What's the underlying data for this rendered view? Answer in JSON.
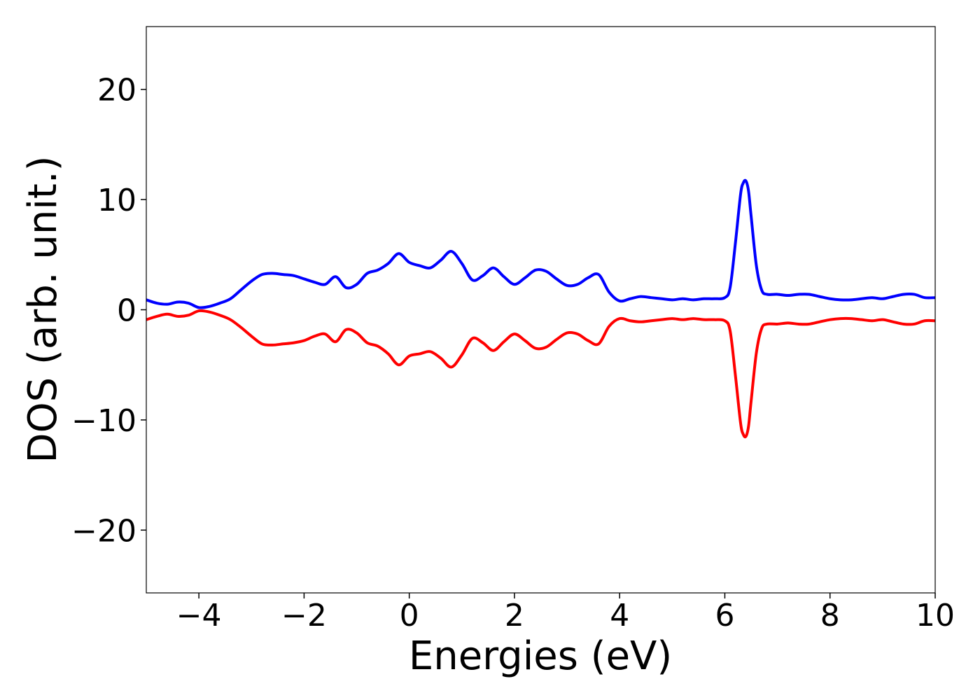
{
  "chart_data": {
    "type": "line",
    "title": "",
    "xlabel": "Energies (eV)",
    "ylabel": "DOS (arb. unit.)",
    "xlim": [
      -5,
      10
    ],
    "ylim": [
      -25.7,
      25.7
    ],
    "grid": false,
    "x_ticks": [
      -4,
      -2,
      0,
      2,
      4,
      6,
      8,
      10
    ],
    "x_tick_labels": [
      "−4",
      "−2",
      "0",
      "2",
      "4",
      "6",
      "8",
      "10"
    ],
    "y_ticks": [
      20,
      10,
      0,
      -10,
      -20
    ],
    "y_tick_labels": [
      "20",
      "10",
      "0",
      "−10",
      "−20"
    ],
    "series": [
      {
        "color": "#0000ff",
        "x": [
          -5.0,
          -4.8,
          -4.6,
          -4.4,
          -4.2,
          -4.0,
          -3.8,
          -3.6,
          -3.4,
          -3.2,
          -3.0,
          -2.8,
          -2.6,
          -2.4,
          -2.2,
          -2.0,
          -1.8,
          -1.6,
          -1.4,
          -1.2,
          -1.0,
          -0.8,
          -0.6,
          -0.4,
          -0.2,
          0.0,
          0.2,
          0.4,
          0.6,
          0.8,
          1.0,
          1.2,
          1.4,
          1.6,
          1.8,
          2.0,
          2.2,
          2.4,
          2.6,
          2.8,
          3.0,
          3.2,
          3.4,
          3.6,
          3.8,
          4.0,
          4.2,
          4.4,
          4.6,
          4.8,
          5.0,
          5.2,
          5.4,
          5.6,
          5.8,
          6.0,
          6.1,
          6.2,
          6.3,
          6.35,
          6.4,
          6.45,
          6.5,
          6.6,
          6.7,
          6.8,
          7.0,
          7.2,
          7.4,
          7.6,
          7.8,
          8.0,
          8.2,
          8.4,
          8.6,
          8.8,
          9.0,
          9.2,
          9.4,
          9.6,
          9.8,
          10.0
        ],
        "y": [
          0.9,
          0.6,
          0.5,
          0.7,
          0.6,
          0.2,
          0.3,
          0.6,
          1.0,
          1.8,
          2.6,
          3.2,
          3.3,
          3.2,
          3.1,
          2.8,
          2.5,
          2.3,
          3.0,
          2.0,
          2.3,
          3.3,
          3.6,
          4.2,
          5.1,
          4.3,
          4.0,
          3.8,
          4.5,
          5.3,
          4.2,
          2.7,
          3.1,
          3.8,
          3.0,
          2.3,
          2.9,
          3.6,
          3.5,
          2.8,
          2.2,
          2.3,
          2.9,
          3.2,
          1.6,
          0.8,
          1.0,
          1.2,
          1.1,
          1.0,
          0.9,
          1.0,
          0.9,
          1.0,
          1.0,
          1.1,
          2.0,
          6.0,
          10.5,
          11.5,
          11.7,
          10.8,
          8.5,
          4.0,
          1.8,
          1.4,
          1.4,
          1.3,
          1.4,
          1.4,
          1.2,
          1.0,
          0.9,
          0.9,
          1.0,
          1.1,
          1.0,
          1.2,
          1.4,
          1.4,
          1.1,
          1.1
        ]
      },
      {
        "color": "#ff0000",
        "x": [
          -5.0,
          -4.8,
          -4.6,
          -4.4,
          -4.2,
          -4.0,
          -3.8,
          -3.6,
          -3.4,
          -3.2,
          -3.0,
          -2.8,
          -2.6,
          -2.4,
          -2.2,
          -2.0,
          -1.8,
          -1.6,
          -1.4,
          -1.2,
          -1.0,
          -0.8,
          -0.6,
          -0.4,
          -0.2,
          0.0,
          0.2,
          0.4,
          0.6,
          0.8,
          1.0,
          1.2,
          1.4,
          1.6,
          1.8,
          2.0,
          2.2,
          2.4,
          2.6,
          2.8,
          3.0,
          3.2,
          3.4,
          3.6,
          3.8,
          4.0,
          4.2,
          4.4,
          4.6,
          4.8,
          5.0,
          5.2,
          5.4,
          5.6,
          5.8,
          6.0,
          6.1,
          6.2,
          6.3,
          6.35,
          6.4,
          6.45,
          6.5,
          6.6,
          6.7,
          6.8,
          7.0,
          7.2,
          7.4,
          7.6,
          7.8,
          8.0,
          8.2,
          8.4,
          8.6,
          8.8,
          9.0,
          9.2,
          9.4,
          9.6,
          9.8,
          10.0
        ],
        "y": [
          -0.9,
          -0.6,
          -0.4,
          -0.6,
          -0.5,
          -0.1,
          -0.2,
          -0.5,
          -0.9,
          -1.6,
          -2.4,
          -3.1,
          -3.2,
          -3.1,
          -3.0,
          -2.8,
          -2.4,
          -2.2,
          -2.9,
          -1.8,
          -2.1,
          -3.0,
          -3.3,
          -4.0,
          -5.0,
          -4.2,
          -4.0,
          -3.8,
          -4.4,
          -5.2,
          -4.1,
          -2.6,
          -3.0,
          -3.7,
          -2.9,
          -2.2,
          -2.8,
          -3.5,
          -3.4,
          -2.7,
          -2.1,
          -2.2,
          -2.8,
          -3.1,
          -1.5,
          -0.8,
          -1.0,
          -1.1,
          -1.0,
          -0.9,
          -0.8,
          -0.9,
          -0.8,
          -0.9,
          -0.9,
          -1.0,
          -1.9,
          -5.9,
          -10.3,
          -11.3,
          -11.5,
          -10.6,
          -8.3,
          -3.9,
          -1.7,
          -1.3,
          -1.3,
          -1.2,
          -1.3,
          -1.3,
          -1.1,
          -0.9,
          -0.8,
          -0.8,
          -0.9,
          -1.0,
          -0.9,
          -1.1,
          -1.3,
          -1.3,
          -1.0,
          -1.0
        ]
      }
    ]
  }
}
